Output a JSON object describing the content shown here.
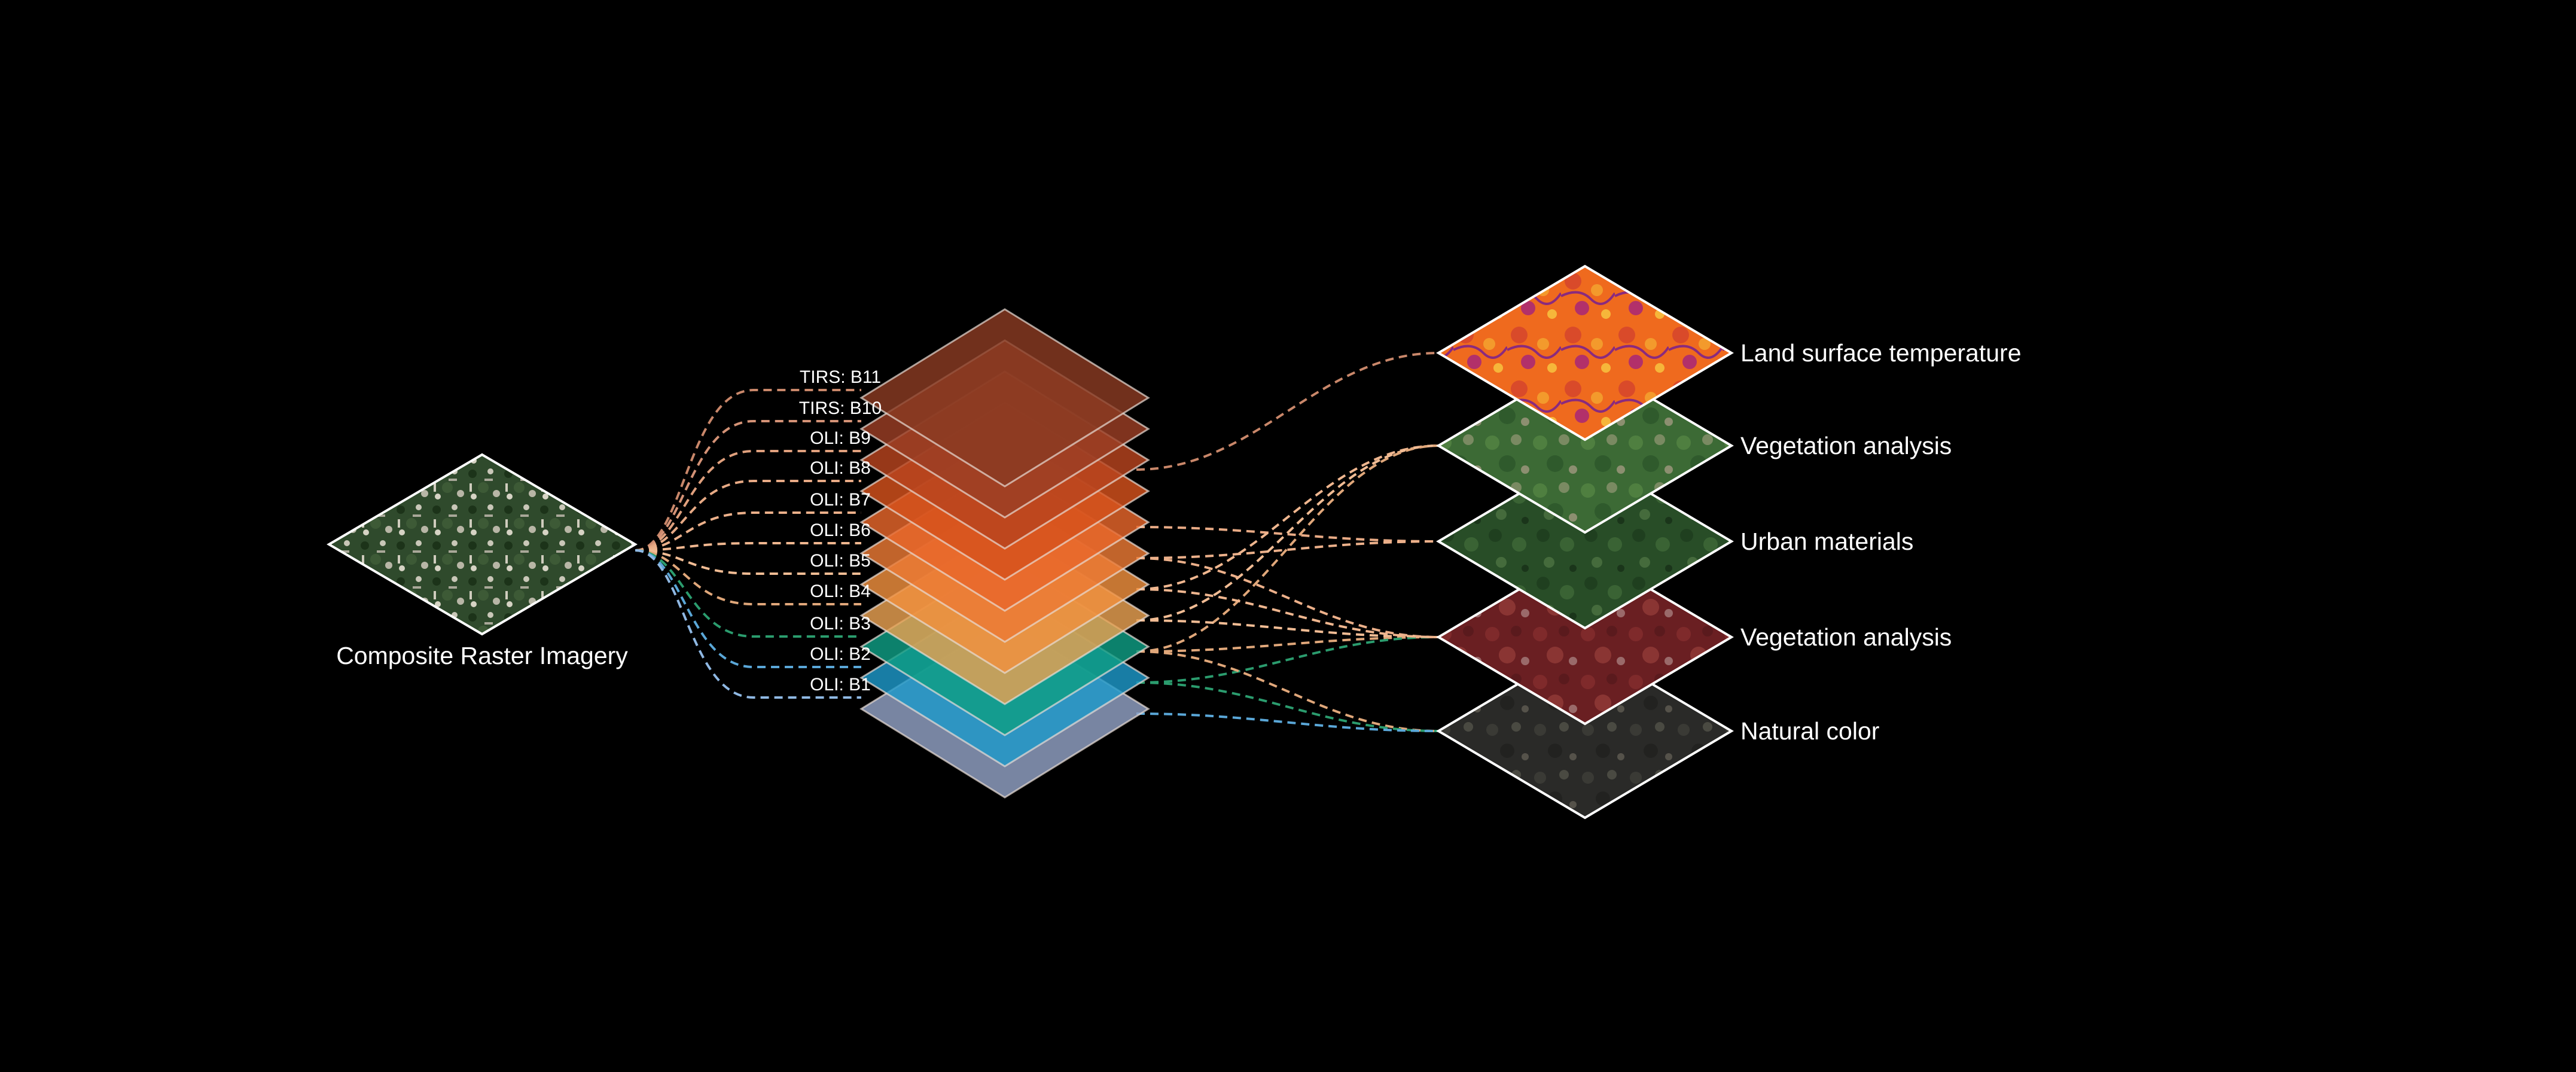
{
  "source": {
    "label": "Composite Raster Imagery"
  },
  "bands": [
    {
      "label": "TIRS: B11",
      "color": "#8a3a22",
      "line": "#c9876a"
    },
    {
      "label": "TIRS: B10",
      "color": "#9b3e24",
      "line": "#d49276"
    },
    {
      "label": "OLI: B9",
      "color": "#b8441f",
      "line": "#e0a07d"
    },
    {
      "label": "OLI: B8",
      "color": "#d5521c",
      "line": "#e8aa85"
    },
    {
      "label": "OLI: B7",
      "color": "#e8662b",
      "line": "#ecb08a"
    },
    {
      "label": "OLI: B6",
      "color": "#ec7a34",
      "line": "#efb68f"
    },
    {
      "label": "OLI: B5",
      "color": "#f0903e",
      "line": "#f1bc94"
    },
    {
      "label": "OLI: B4",
      "color": "#e9a152",
      "line": "#e0a77a"
    },
    {
      "label": "OLI: B3",
      "color": "#0f9e84",
      "line": "#2b9c6e"
    },
    {
      "label": "OLI: B2",
      "color": "#1d99c9",
      "line": "#5aa7d8"
    },
    {
      "label": "OLI: B1",
      "color": "#93a2c6",
      "line": "#8fb8e3"
    }
  ],
  "outputs": [
    {
      "label": "Land surface temperature",
      "theme": "thermal"
    },
    {
      "label": "Vegetation analysis",
      "theme": "vegetation-green"
    },
    {
      "label": "Urban materials",
      "theme": "urban-green"
    },
    {
      "label": "Vegetation analysis",
      "theme": "vegetation-red"
    },
    {
      "label": "Natural color",
      "theme": "natural"
    }
  ],
  "colors": {
    "background": "#000000",
    "outline": "#ffffff"
  }
}
